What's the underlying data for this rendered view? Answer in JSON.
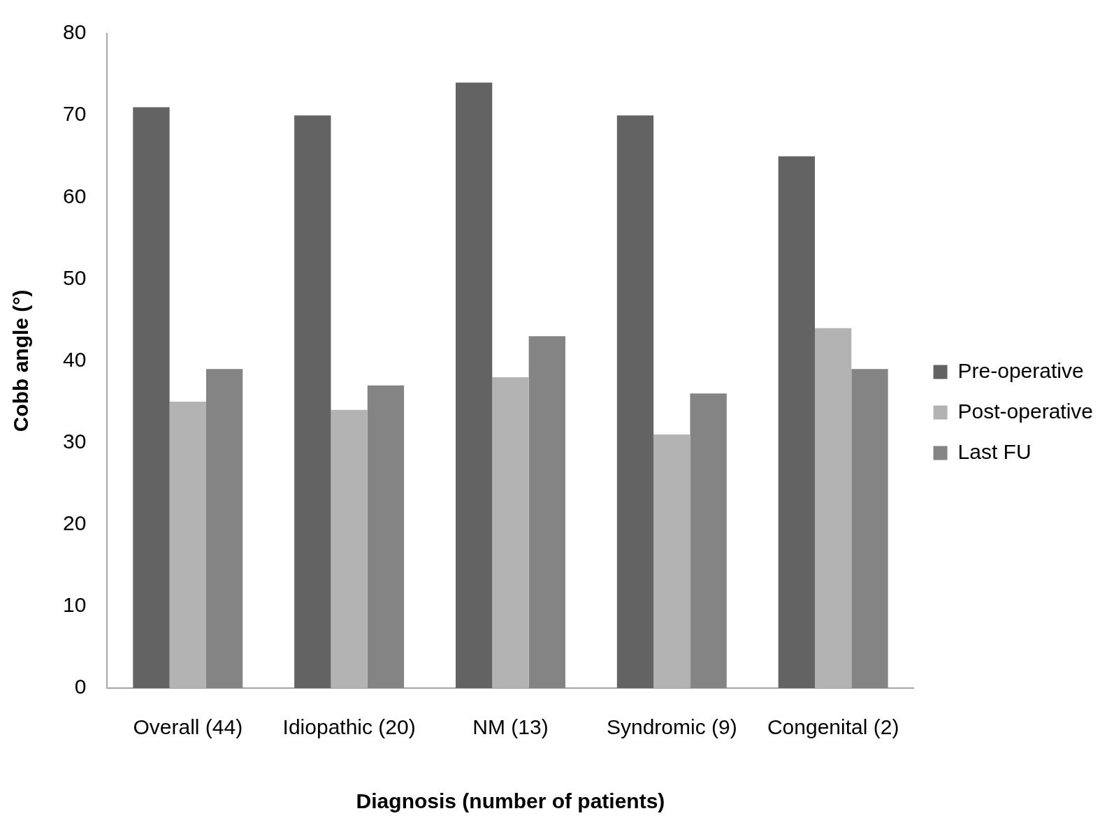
{
  "chart_data": {
    "type": "bar",
    "x_label": "Diagnosis (number of patients)",
    "y_label": "Cobb angle (°)",
    "categories": [
      "Overall (44)",
      "Idiopathic (20)",
      "NM (13)",
      "Syndromic (9)",
      "Congenital (2)"
    ],
    "series": [
      {
        "name": "Pre-operative",
        "color": "#636363",
        "values": [
          71,
          70,
          74,
          70,
          65
        ]
      },
      {
        "name": "Post-operative",
        "color": "#b3b3b3",
        "values": [
          35,
          34,
          38,
          31,
          44
        ]
      },
      {
        "name": "Last FU",
        "color": "#848484",
        "values": [
          39,
          37,
          43,
          36,
          39
        ]
      }
    ],
    "ylim": [
      0,
      80
    ],
    "yticks": [
      0,
      10,
      20,
      30,
      40,
      50,
      60,
      70,
      80
    ],
    "grid": false,
    "legend": "right"
  }
}
